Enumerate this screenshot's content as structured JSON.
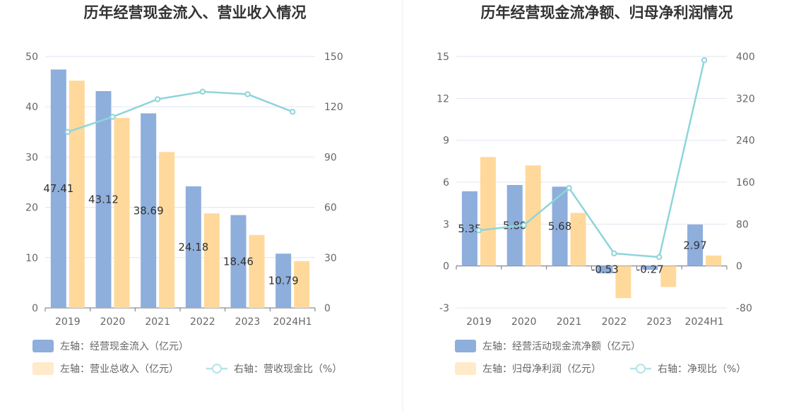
{
  "chart_data": [
    {
      "type": "bar+line",
      "title": "历年经营现金流入、营业收入情况",
      "categories": [
        "2019",
        "2020",
        "2021",
        "2022",
        "2023",
        "2024H1"
      ],
      "left_axis": {
        "min": 0,
        "max": 50,
        "ticks": [
          0,
          10,
          20,
          30,
          40,
          50
        ]
      },
      "right_axis": {
        "min": 0,
        "max": 150,
        "ticks": [
          0,
          30,
          60,
          90,
          120,
          150
        ]
      },
      "series": [
        {
          "name": "左轴：经营现金流入（亿元）",
          "type": "bar",
          "axis": "left",
          "color": "#8eaedc",
          "values": [
            47.41,
            43.12,
            38.69,
            24.18,
            18.46,
            10.79
          ],
          "labels": [
            "47.41",
            "43.12",
            "38.69",
            "24.18",
            "18.46",
            "10.79"
          ]
        },
        {
          "name": "左轴：营业总收入（亿元）",
          "type": "bar",
          "axis": "left",
          "color": "#ffd99b",
          "values": [
            45.2,
            37.8,
            31.0,
            18.8,
            14.5,
            9.3
          ]
        },
        {
          "name": "右轴：营收现金比（%）",
          "type": "line",
          "axis": "right",
          "color": "#8ed5d9",
          "values": [
            105,
            114,
            124.5,
            129,
            127.5,
            117
          ]
        }
      ]
    },
    {
      "type": "bar+line",
      "title": "历年经营现金流净额、归母净利润情况",
      "categories": [
        "2019",
        "2020",
        "2021",
        "2022",
        "2023",
        "2024H1"
      ],
      "left_axis": {
        "min": -3,
        "max": 15,
        "ticks": [
          -3,
          0,
          3,
          6,
          9,
          12,
          15
        ]
      },
      "right_axis": {
        "min": -80,
        "max": 400,
        "ticks": [
          -80,
          0,
          80,
          160,
          240,
          320,
          400
        ]
      },
      "series": [
        {
          "name": "左轴：经营活动现金流净额（亿元）",
          "type": "bar",
          "axis": "left",
          "color": "#8eaedc",
          "values": [
            5.35,
            5.8,
            5.68,
            -0.53,
            -0.27,
            2.97
          ],
          "labels": [
            "5.35",
            "5.80",
            "5.68",
            "-0.53",
            "-0.27",
            "2.97"
          ]
        },
        {
          "name": "左轴：归母净利润（亿元）",
          "type": "bar",
          "axis": "left",
          "color": "#ffd99b",
          "values": [
            7.8,
            7.2,
            3.8,
            -2.3,
            -1.5,
            0.75
          ]
        },
        {
          "name": "右轴：净现比（%）",
          "type": "line",
          "axis": "right",
          "color": "#8ed5d9",
          "values": [
            68,
            78,
            149,
            24,
            17,
            393
          ]
        }
      ]
    }
  ]
}
